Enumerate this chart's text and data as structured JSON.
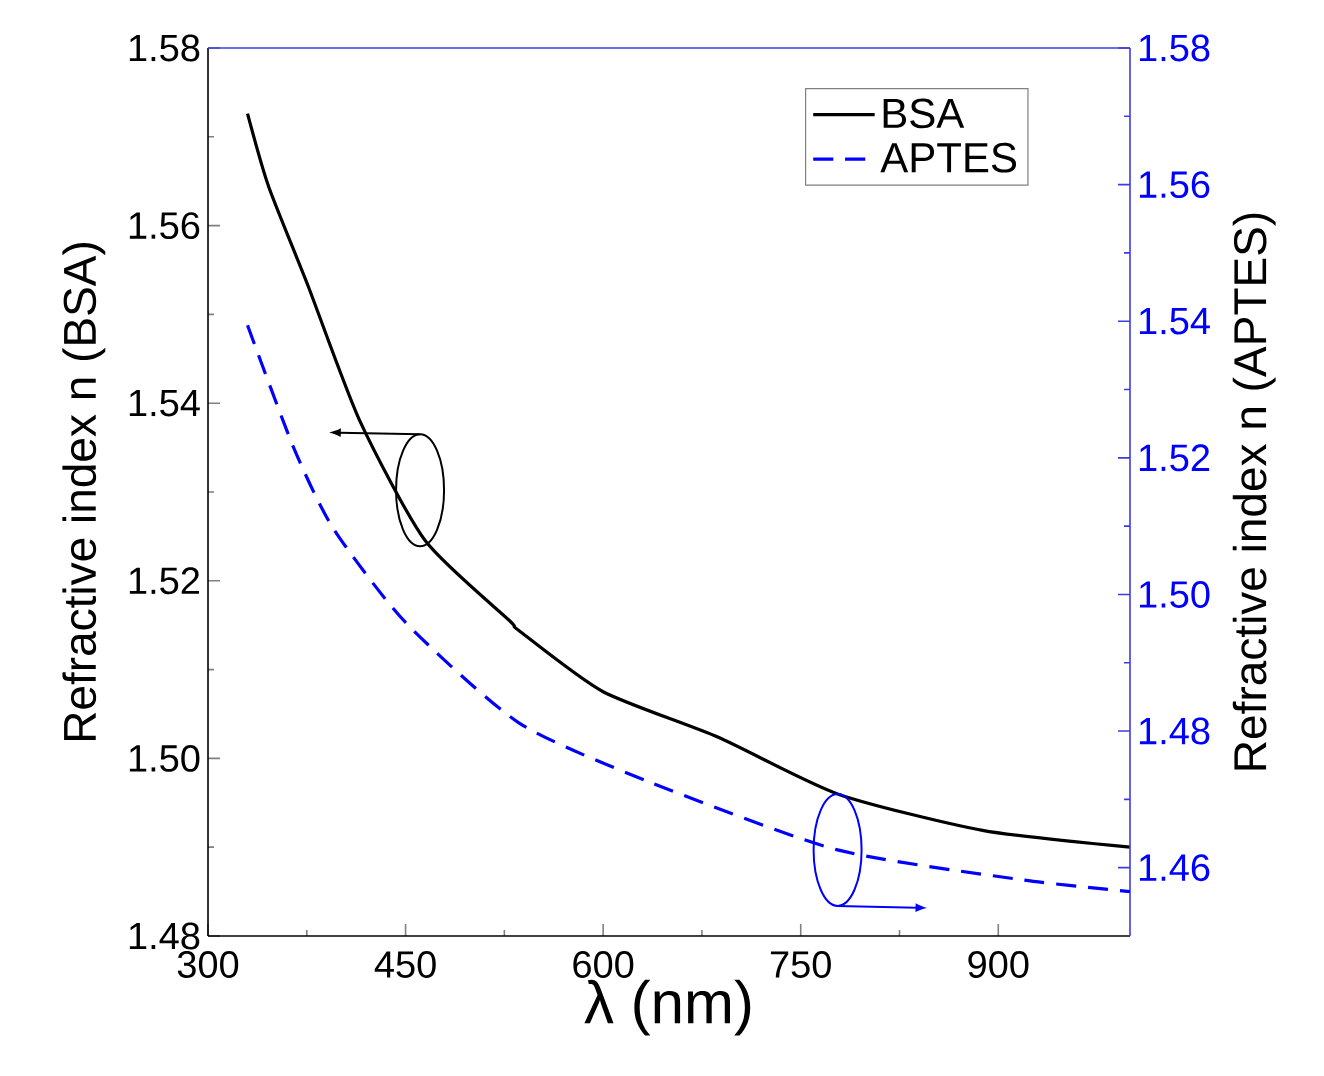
{
  "chart_data": {
    "type": "line",
    "xlabel": "λ (nm)",
    "ylabel": "Refractive index n (BSA)",
    "y2label": "Refractive index n (APTES)",
    "xlim": [
      300,
      1000
    ],
    "xticks": [
      300,
      450,
      600,
      750,
      900
    ],
    "ylim": [
      1.48,
      1.58
    ],
    "yticks": [
      1.48,
      {
        "value": 1.5,
        "label": "1.50"
      },
      1.52,
      1.54,
      1.56,
      1.58
    ],
    "y2lim": [
      1.45,
      1.58
    ],
    "y2ticks": [
      1.46,
      1.48,
      {
        "value": 1.5,
        "label": "1.50"
      },
      1.52,
      1.54,
      1.56,
      1.58
    ],
    "legend": "top right",
    "series": [
      {
        "name": "BSA",
        "color": "#000000",
        "line_style": "solid",
        "x": [
          330,
          346,
          376,
          415,
          465,
          529,
          536,
          600,
          687,
          778,
          888,
          1000
        ],
        "values": [
          1.5726,
          1.5644,
          1.5532,
          1.5381,
          1.5245,
          1.5155,
          1.5144,
          1.5075,
          1.5024,
          1.496,
          1.4919,
          1.49
        ]
      },
      {
        "name": "APTES",
        "color": "#0000ff",
        "line_style": "dashed",
        "axis": "y2",
        "x": [
          330,
          365,
          395,
          450,
          536,
          637,
          778,
          919,
          1000
        ],
        "values": [
          1.5394,
          1.5215,
          1.5097,
          1.4959,
          1.4812,
          1.4724,
          1.4626,
          1.4582,
          1.4565
        ]
      }
    ]
  }
}
